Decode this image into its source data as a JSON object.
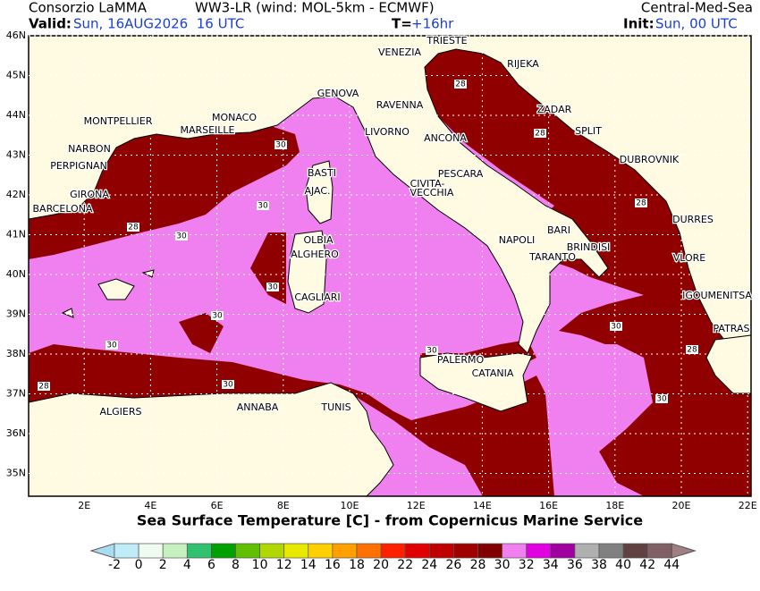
{
  "header": {
    "org": "Consorzio LaMMA",
    "model": "WW3-LR (wind: MOL-5km - ECMWF)",
    "domain": "Central-Med-Sea",
    "valid_label": "Valid:",
    "valid": "Sun, 16AUG2026  16 UTC",
    "lead_label": "T=",
    "lead": "+16hr",
    "init_label": "Init:",
    "init": "Sun, 00 UTC"
  },
  "map": {
    "title": "Sea Surface Temperature [C] - from Copernicus Marine Service",
    "xticks": [
      {
        "value": 2,
        "label": "2E"
      },
      {
        "value": 4,
        "label": "4E"
      },
      {
        "value": 6,
        "label": "6E"
      },
      {
        "value": 8,
        "label": "8E"
      },
      {
        "value": 10,
        "label": "10E"
      },
      {
        "value": 12,
        "label": "12E"
      },
      {
        "value": 14,
        "label": "14E"
      },
      {
        "value": 16,
        "label": "16E"
      },
      {
        "value": 18,
        "label": "18E"
      },
      {
        "value": 20,
        "label": "20E"
      },
      {
        "value": 22,
        "label": "22E"
      }
    ],
    "yticks": [
      {
        "value": 46,
        "label": "46N"
      },
      {
        "value": 45,
        "label": "45N"
      },
      {
        "value": 44,
        "label": "44N"
      },
      {
        "value": 43,
        "label": "43N"
      },
      {
        "value": 42,
        "label": "42N"
      },
      {
        "value": 41,
        "label": "41N"
      },
      {
        "value": 40,
        "label": "40N"
      },
      {
        "value": 39,
        "label": "39N"
      },
      {
        "value": 38,
        "label": "38N"
      },
      {
        "value": 37,
        "label": "37N"
      },
      {
        "value": 36,
        "label": "36N"
      },
      {
        "value": 35,
        "label": "35N"
      }
    ],
    "cities": [
      "TRIESTE",
      "VENEZIA",
      "RIJEKA",
      "GENOVA",
      "RAVENNA",
      "ZADAR",
      "MONTPELLIER",
      "MONACO",
      "MARSEILLE",
      "LIVORNO",
      "ANCONA",
      "SPLIT",
      "NARBON",
      "DUBROVNIK",
      "PERPIGNAN",
      "BASTI",
      "PESCARA",
      "CIVITA-",
      "VECCHIA",
      "AJAC.",
      "GIRONA",
      "BARCELONA",
      "DURRES",
      "BARI",
      "OLBIA",
      "NAPOLI",
      "BRINDISI",
      "ALGHERO",
      "TARANTO",
      "VLORE",
      "CAGLIARI",
      "IGOUMENITSA",
      "PATRAS",
      "PALERMO",
      "CATANIA",
      "ALGIERS",
      "ANNABA",
      "TUNIS"
    ],
    "contour_labels": [
      28,
      28,
      28,
      28,
      28,
      28,
      30,
      30,
      30,
      30,
      30,
      30,
      30,
      30,
      30,
      30
    ]
  },
  "colorbar": {
    "ticks": [
      -2,
      0,
      2,
      4,
      6,
      8,
      10,
      12,
      14,
      16,
      18,
      20,
      22,
      24,
      26,
      28,
      30,
      32,
      34,
      36,
      38,
      40,
      42,
      44
    ],
    "colors": [
      "#c0ecf8",
      "#eefcee",
      "#c6f0c0",
      "#30c070",
      "#00a000",
      "#60c000",
      "#b0d800",
      "#e8e800",
      "#ffd000",
      "#ffa000",
      "#ff7000",
      "#ff2000",
      "#e00000",
      "#c00000",
      "#a00000",
      "#800000",
      "#f080f0",
      "#e000e0",
      "#a000a0",
      "#b0b0b0",
      "#808080",
      "#604040",
      "#806060"
    ],
    "under_color": "#a8dcf0",
    "over_color": "#a08080"
  }
}
